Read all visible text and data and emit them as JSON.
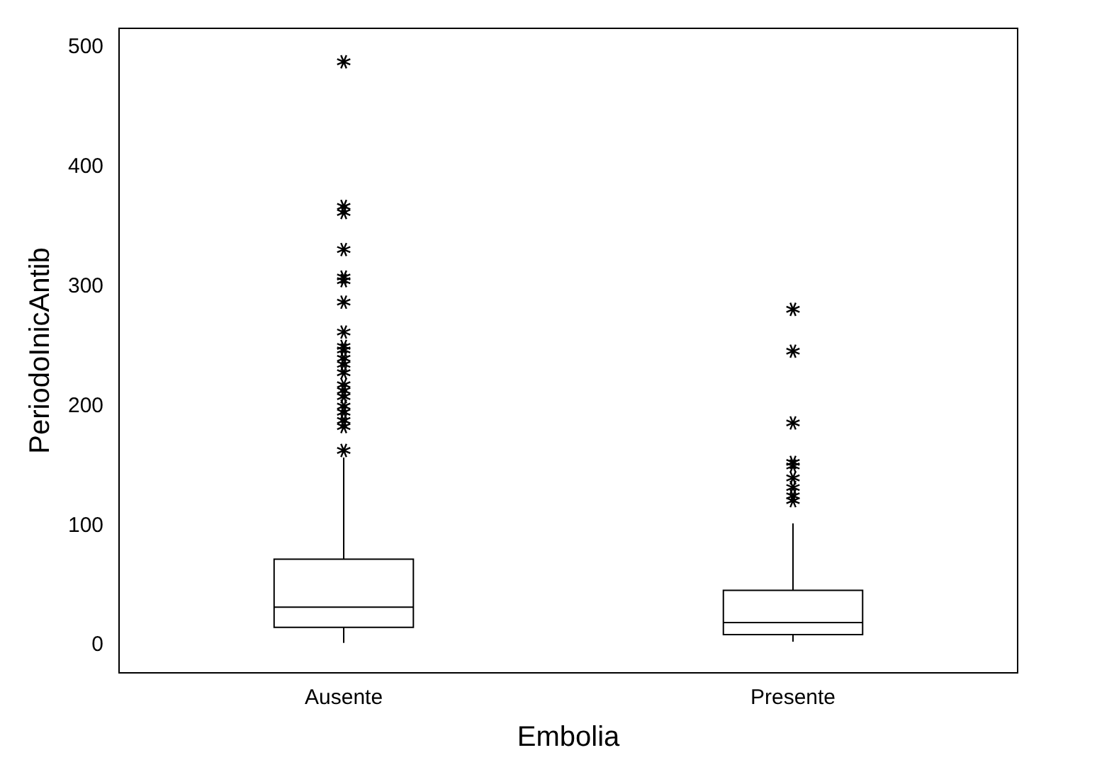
{
  "chart_data": {
    "type": "box",
    "xlabel": "Embolia",
    "ylabel": "PeriodoInicAntib",
    "categories": [
      "Ausente",
      "Presente"
    ],
    "boxes": [
      {
        "low": 2,
        "q1": 15,
        "median": 32,
        "q3": 72,
        "high": 157,
        "outliers": [
          163,
          183,
          188,
          195,
          200,
          208,
          213,
          218,
          228,
          235,
          240,
          247,
          250,
          262,
          287,
          305,
          308,
          331,
          362,
          367,
          488
        ]
      },
      {
        "low": 3,
        "q1": 9,
        "median": 19,
        "q3": 46,
        "high": 102,
        "outliers": [
          121,
          125,
          132,
          140,
          150,
          153,
          186,
          246,
          281
        ]
      }
    ],
    "ylim": [
      -23,
      516
    ],
    "yticks": [
      0,
      100,
      200,
      300,
      400,
      500
    ],
    "grid": false,
    "marker": "star",
    "legend": false
  }
}
